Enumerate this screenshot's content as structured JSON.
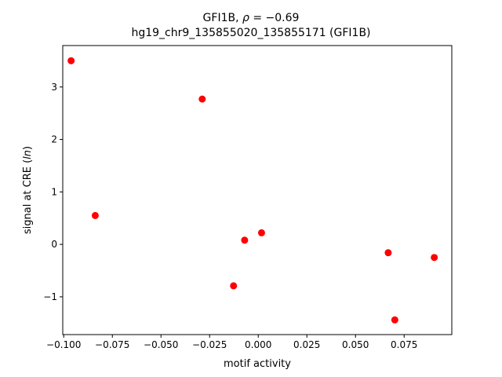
{
  "chart_data": {
    "type": "scatter",
    "title_line1_prefix": "GFI1B, ",
    "title_line1_rho": "ρ",
    "title_line1_suffix": " = −0.69",
    "title_line2": "hg19_chr9_135855020_135855171 (GFI1B)",
    "xlabel": "motif activity",
    "ylabel_prefix": "signal at CRE (",
    "ylabel_italic": "ln",
    "ylabel_suffix": ")",
    "xlim": [
      -0.1005,
      0.0995
    ],
    "ylim": [
      -1.72,
      3.79
    ],
    "xticks": [
      -0.1,
      -0.075,
      -0.05,
      -0.025,
      0.0,
      0.025,
      0.05,
      0.075
    ],
    "xtick_labels": [
      "−0.100",
      "−0.075",
      "−0.050",
      "−0.025",
      "0.000",
      "0.025",
      "0.050",
      "0.075"
    ],
    "yticks": [
      -1,
      0,
      1,
      2,
      3
    ],
    "ytick_labels": [
      "−1",
      "0",
      "1",
      "2",
      "3"
    ],
    "grid": false,
    "marker_color": "#ff0000",
    "points": [
      {
        "x": -0.0962,
        "y": 3.5
      },
      {
        "x": -0.0838,
        "y": 0.55
      },
      {
        "x": -0.0288,
        "y": 2.77
      },
      {
        "x": -0.0127,
        "y": -0.79
      },
      {
        "x": -0.007,
        "y": 0.08
      },
      {
        "x": 0.0017,
        "y": 0.22
      },
      {
        "x": 0.0668,
        "y": -0.16
      },
      {
        "x": 0.0702,
        "y": -1.44
      },
      {
        "x": 0.0905,
        "y": -0.25
      }
    ]
  }
}
